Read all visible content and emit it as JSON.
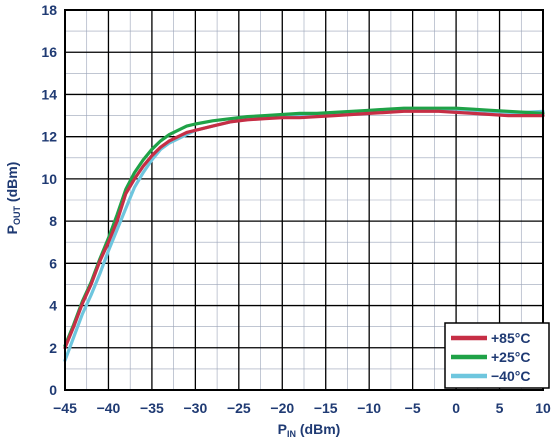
{
  "chart_data": {
    "type": "line",
    "xlabel": {
      "main": "P",
      "sub": "IN",
      "unit": " (dBm)"
    },
    "ylabel": {
      "main": "P",
      "sub": "OUT",
      "unit": " (dBm)"
    },
    "xlim": [
      -45,
      10
    ],
    "ylim": [
      0,
      18
    ],
    "xticks": [
      -45,
      -40,
      -35,
      -30,
      -25,
      -20,
      -15,
      -10,
      -5,
      0,
      5,
      10
    ],
    "xtick_labels": [
      "−45",
      "−40",
      "−35",
      "−30",
      "−25",
      "−20",
      "−15",
      "−10",
      "−5",
      "0",
      "5",
      "10"
    ],
    "yticks": [
      0,
      2,
      4,
      6,
      8,
      10,
      12,
      14,
      16,
      18
    ],
    "ytick_labels": [
      "0",
      "2",
      "4",
      "6",
      "8",
      "10",
      "12",
      "14",
      "16",
      "18"
    ],
    "x_minor_step": 2.5,
    "y_minor_step": 1,
    "grid": true,
    "legend_position": "bottom-right",
    "series": [
      {
        "name": "+85°C",
        "color": "#c62e45",
        "x": [
          -45,
          -44,
          -43,
          -42,
          -41,
          -40,
          -39,
          -38,
          -37,
          -36,
          -35,
          -34,
          -33,
          -32,
          -31,
          -30,
          -28,
          -26,
          -24,
          -22,
          -20,
          -18,
          -16,
          -14,
          -12,
          -10,
          -8,
          -6,
          -4,
          -2,
          0,
          2,
          4,
          6,
          8,
          10
        ],
        "y": [
          2.0,
          3.0,
          4.1,
          5.0,
          6.1,
          7.0,
          8.0,
          9.3,
          10.0,
          10.6,
          11.1,
          11.5,
          11.8,
          12.0,
          12.2,
          12.3,
          12.5,
          12.7,
          12.8,
          12.85,
          12.9,
          12.9,
          12.95,
          13.0,
          13.05,
          13.1,
          13.15,
          13.2,
          13.2,
          13.2,
          13.15,
          13.1,
          13.05,
          13.0,
          13.0,
          13.0
        ]
      },
      {
        "name": "+25°C",
        "color": "#1fa247",
        "x": [
          -45,
          -44,
          -43,
          -42,
          -41,
          -40,
          -39,
          -38,
          -37,
          -36,
          -35,
          -34,
          -33,
          -32,
          -31,
          -30,
          -28,
          -26,
          -24,
          -22,
          -20,
          -18,
          -16,
          -14,
          -12,
          -10,
          -8,
          -6,
          -4,
          -2,
          0,
          2,
          4,
          6,
          8,
          10
        ],
        "y": [
          2.1,
          3.1,
          4.2,
          5.1,
          6.2,
          7.2,
          8.3,
          9.5,
          10.3,
          10.9,
          11.4,
          11.8,
          12.1,
          12.3,
          12.5,
          12.6,
          12.75,
          12.85,
          12.95,
          13.0,
          13.05,
          13.1,
          13.1,
          13.15,
          13.2,
          13.25,
          13.3,
          13.35,
          13.35,
          13.35,
          13.35,
          13.3,
          13.25,
          13.2,
          13.15,
          13.1
        ]
      },
      {
        "name": "−40°C",
        "color": "#6ec6de",
        "x": [
          -45,
          -44,
          -43,
          -42,
          -41,
          -40,
          -39,
          -38,
          -37,
          -36,
          -35,
          -34,
          -33,
          -32,
          -31,
          -30,
          -28,
          -26,
          -24,
          -22,
          -20,
          -18,
          -16,
          -14,
          -12,
          -10,
          -8,
          -6,
          -4,
          -2,
          0,
          2,
          4,
          6,
          8,
          10
        ],
        "y": [
          1.4,
          2.5,
          3.6,
          4.5,
          5.5,
          6.6,
          7.6,
          8.6,
          9.6,
          10.3,
          10.9,
          11.4,
          11.7,
          11.9,
          12.1,
          12.3,
          12.5,
          12.7,
          12.85,
          12.9,
          12.95,
          13.0,
          13.05,
          13.1,
          13.15,
          13.2,
          13.25,
          13.3,
          13.3,
          13.3,
          13.3,
          13.25,
          13.2,
          13.15,
          13.15,
          13.2
        ]
      }
    ]
  }
}
